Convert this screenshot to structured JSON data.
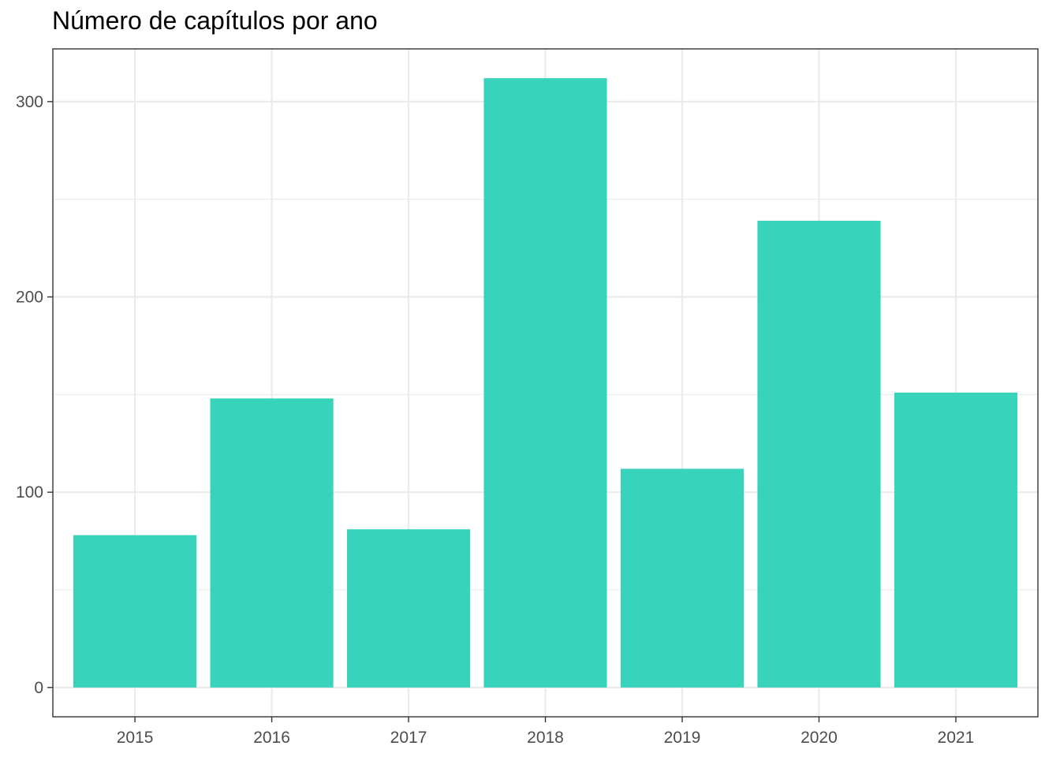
{
  "chart_data": {
    "type": "bar",
    "title": "Número de capítulos por ano",
    "xlabel": "",
    "ylabel": "",
    "categories": [
      "2015",
      "2016",
      "2017",
      "2018",
      "2019",
      "2020",
      "2021"
    ],
    "values": [
      78,
      148,
      81,
      312,
      112,
      239,
      151
    ],
    "ylim": [
      -15,
      327
    ],
    "yticks": [
      0,
      100,
      200,
      300
    ],
    "grid": true,
    "legend": "none",
    "bar_color": "#37D3BB",
    "grid_color": "#EBEBEB",
    "panel_border_color": "#333333"
  }
}
